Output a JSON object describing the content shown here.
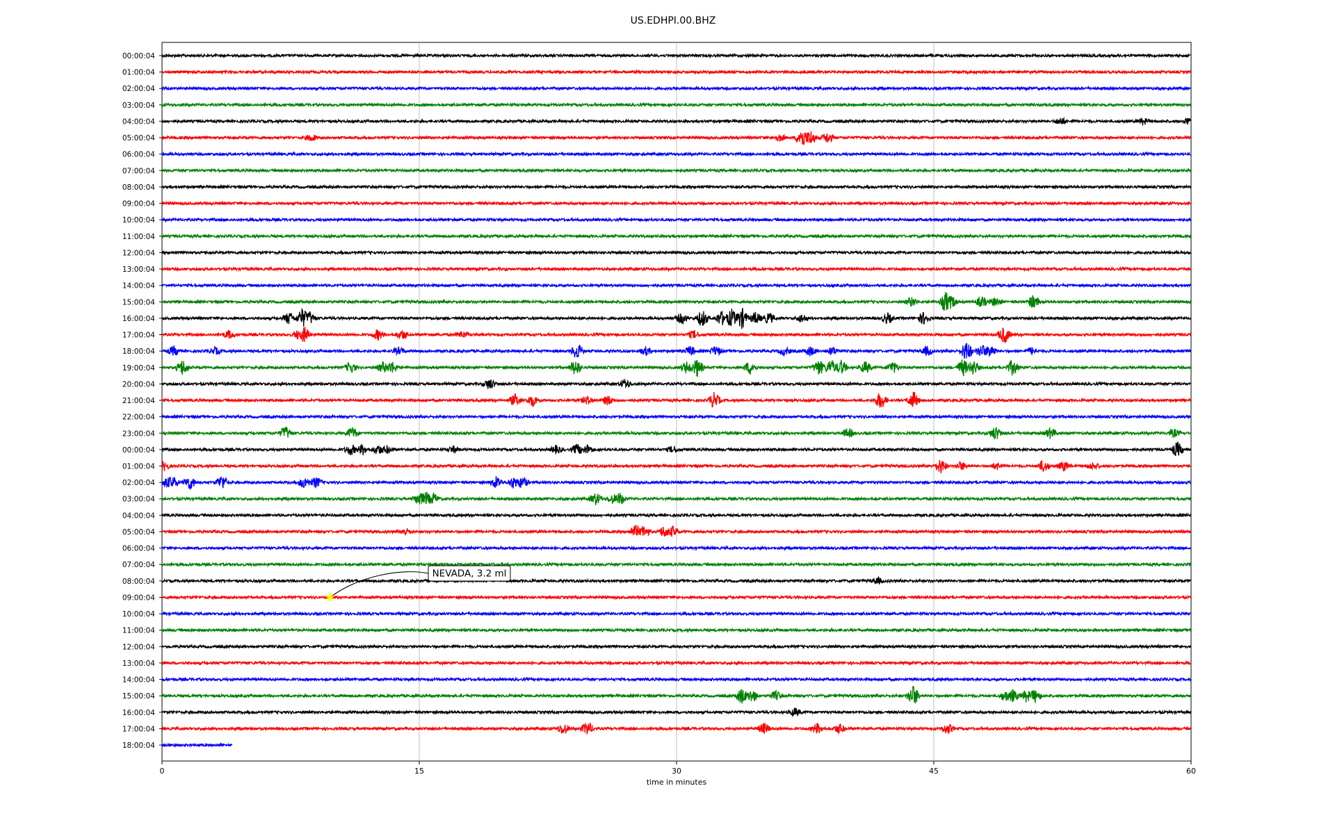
{
  "colors": {
    "black": "#000000",
    "red": "#ff0000",
    "blue": "#0000ff",
    "green": "#008000",
    "star": "#ffff00",
    "grid": "#b0b0b0"
  },
  "chart_data": {
    "type": "line",
    "title": "US.EDHPI.00.BHZ",
    "xlabel": "time in minutes",
    "ylabel": "",
    "xlim": [
      0,
      60
    ],
    "x_ticks": [
      "0",
      "15",
      "30",
      "45",
      "60"
    ],
    "x_tick_values": [
      0,
      15,
      30,
      45,
      60
    ],
    "grid": "vertical lines at 15, 30, 45",
    "color_cycle": [
      "black",
      "red",
      "blue",
      "green"
    ],
    "row_labels": [
      "00:00:04",
      "01:00:04",
      "02:00:04",
      "03:00:04",
      "04:00:04",
      "05:00:04",
      "06:00:04",
      "07:00:04",
      "08:00:04",
      "09:00:04",
      "10:00:04",
      "11:00:04",
      "12:00:04",
      "13:00:04",
      "14:00:04",
      "15:00:04",
      "16:00:04",
      "17:00:04",
      "18:00:04",
      "19:00:04",
      "20:00:04",
      "21:00:04",
      "22:00:04",
      "23:00:04",
      "00:00:04",
      "01:00:04",
      "02:00:04",
      "03:00:04",
      "04:00:04",
      "05:00:04",
      "06:00:04",
      "07:00:04",
      "08:00:04",
      "09:00:04",
      "10:00:04",
      "11:00:04",
      "12:00:04",
      "13:00:04",
      "14:00:04",
      "15:00:04",
      "16:00:04",
      "17:00:04",
      "18:00:04"
    ],
    "last_row_end_minutes": 4.1,
    "events_note": "minute positions of visible bursts per row (row index: [minute, relative amplitude])",
    "events": {
      "4": [
        [
          52.4,
          0.5
        ],
        [
          57.2,
          0.5
        ],
        [
          59.9,
          0.6
        ]
      ],
      "5": [
        [
          8.7,
          0.5
        ],
        [
          36.0,
          0.5
        ],
        [
          37.3,
          1.6
        ],
        [
          37.8,
          1.2
        ],
        [
          38.8,
          0.8
        ]
      ],
      "15": [
        [
          43.7,
          0.7
        ],
        [
          45.7,
          1.6
        ],
        [
          46.0,
          1.0
        ],
        [
          47.8,
          0.8
        ],
        [
          48.6,
          0.6
        ],
        [
          50.8,
          1.0
        ]
      ],
      "16": [
        [
          7.4,
          0.9
        ],
        [
          8.2,
          1.5
        ],
        [
          8.6,
          1.0
        ],
        [
          30.3,
          0.8
        ],
        [
          31.5,
          1.3
        ],
        [
          32.6,
          1.1
        ],
        [
          33.2,
          1.4
        ],
        [
          33.8,
          1.6
        ],
        [
          34.6,
          0.9
        ],
        [
          35.4,
          0.8
        ],
        [
          37.3,
          0.6
        ],
        [
          42.3,
          0.8
        ],
        [
          44.4,
          0.9
        ]
      ],
      "17": [
        [
          3.9,
          0.6
        ],
        [
          8.0,
          0.8
        ],
        [
          8.3,
          1.2
        ],
        [
          12.6,
          0.8
        ],
        [
          14.0,
          0.7
        ],
        [
          17.5,
          0.5
        ],
        [
          31.0,
          0.6
        ],
        [
          49.1,
          1.3
        ]
      ],
      "18": [
        [
          0.7,
          0.7
        ],
        [
          3.1,
          0.5
        ],
        [
          13.8,
          0.5
        ],
        [
          24.2,
          1.2
        ],
        [
          28.2,
          0.6
        ],
        [
          30.8,
          0.7
        ],
        [
          32.3,
          0.7
        ],
        [
          36.3,
          0.6
        ],
        [
          37.8,
          0.7
        ],
        [
          39.1,
          0.6
        ],
        [
          44.6,
          0.7
        ],
        [
          46.9,
          1.5
        ],
        [
          47.8,
          1.0
        ],
        [
          48.3,
          1.0
        ],
        [
          50.7,
          0.5
        ]
      ],
      "19": [
        [
          1.2,
          1.2
        ],
        [
          11.0,
          0.8
        ],
        [
          12.9,
          0.8
        ],
        [
          13.4,
          0.9
        ],
        [
          24.1,
          1.2
        ],
        [
          30.6,
          0.9
        ],
        [
          31.2,
          1.4
        ],
        [
          34.3,
          1.0
        ],
        [
          38.3,
          1.2
        ],
        [
          39.0,
          1.2
        ],
        [
          39.6,
          1.1
        ],
        [
          41.0,
          0.9
        ],
        [
          42.6,
          0.9
        ],
        [
          46.7,
          1.3
        ],
        [
          47.3,
          1.1
        ],
        [
          49.6,
          1.2
        ]
      ],
      "20": [
        [
          19.1,
          0.8
        ],
        [
          27.0,
          0.7
        ]
      ],
      "21": [
        [
          20.6,
          0.9
        ],
        [
          21.6,
          0.9
        ],
        [
          24.8,
          0.6
        ],
        [
          26.0,
          0.7
        ],
        [
          32.2,
          1.2
        ],
        [
          41.9,
          1.3
        ],
        [
          43.8,
          1.3
        ]
      ],
      "23": [
        [
          7.2,
          1.0
        ],
        [
          11.1,
          0.9
        ],
        [
          40.0,
          0.7
        ],
        [
          48.6,
          1.0
        ],
        [
          51.8,
          0.8
        ],
        [
          59.0,
          0.6
        ]
      ],
      "24": [
        [
          11.0,
          0.8
        ],
        [
          11.7,
          0.8
        ],
        [
          12.6,
          0.7
        ],
        [
          13.1,
          0.6
        ],
        [
          17.0,
          0.5
        ],
        [
          23.0,
          0.6
        ],
        [
          24.2,
          0.8
        ],
        [
          24.8,
          0.7
        ],
        [
          29.8,
          0.5
        ],
        [
          59.2,
          1.1
        ]
      ],
      "25": [
        [
          0.1,
          0.7
        ],
        [
          45.4,
          1.1
        ],
        [
          46.6,
          0.6
        ],
        [
          48.7,
          0.5
        ],
        [
          51.4,
          0.9
        ],
        [
          52.6,
          0.7
        ],
        [
          54.3,
          0.5
        ]
      ],
      "26": [
        [
          0.3,
          0.8
        ],
        [
          0.6,
          1.0
        ],
        [
          1.6,
          1.1
        ],
        [
          3.5,
          1.1
        ],
        [
          8.3,
          0.9
        ],
        [
          9.0,
          0.8
        ],
        [
          19.5,
          1.0
        ],
        [
          20.5,
          0.9
        ],
        [
          21.0,
          0.9
        ]
      ],
      "27": [
        [
          15.0,
          1.1
        ],
        [
          15.4,
          1.0
        ],
        [
          15.8,
          0.9
        ],
        [
          25.3,
          0.9
        ],
        [
          26.3,
          0.7
        ],
        [
          26.7,
          0.9
        ]
      ],
      "29": [
        [
          14.2,
          0.5
        ],
        [
          27.6,
          1.0
        ],
        [
          28.1,
          0.9
        ],
        [
          29.3,
          0.9
        ],
        [
          29.8,
          0.8
        ]
      ],
      "32": [
        [
          41.7,
          0.5
        ]
      ],
      "39": [
        [
          33.8,
          1.2
        ],
        [
          34.4,
          1.0
        ],
        [
          35.8,
          0.7
        ],
        [
          43.8,
          1.6
        ],
        [
          49.2,
          0.8
        ],
        [
          49.6,
          0.9
        ],
        [
          50.4,
          0.9
        ],
        [
          50.9,
          1.0
        ]
      ],
      "40": [
        [
          36.9,
          0.6
        ]
      ],
      "41": [
        [
          23.4,
          0.9
        ],
        [
          24.8,
          1.0
        ],
        [
          35.1,
          0.8
        ],
        [
          38.2,
          0.8
        ],
        [
          39.5,
          0.7
        ],
        [
          45.8,
          0.8
        ]
      ]
    },
    "annotation": {
      "text": "NEVADA, 3.2 ml",
      "row_index": 33,
      "minute": 9.8
    }
  }
}
